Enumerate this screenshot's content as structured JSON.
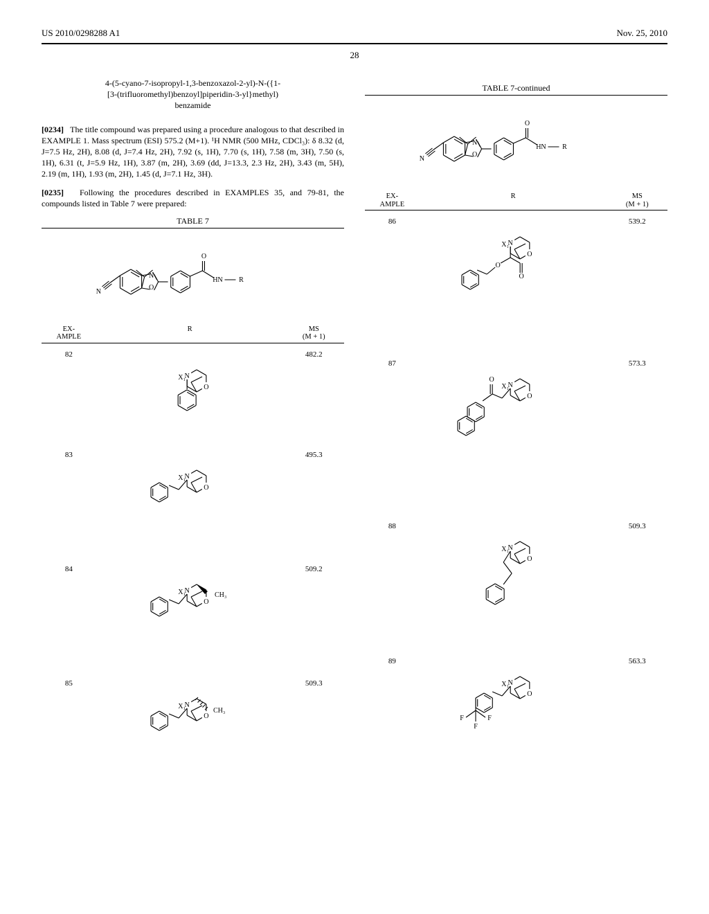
{
  "header": {
    "left": "US 2010/0298288 A1",
    "right": "Nov. 25, 2010",
    "page_number": "28"
  },
  "left_column": {
    "compound_title_lines": [
      "4-(5-cyano-7-isopropyl-1,3-benzoxazol-2-yl)-N-({1-",
      "[3-(trifluoromethyl)benzoyl]piperidin-3-yl}methyl)",
      "benzamide"
    ],
    "para_0234_num": "[0234]",
    "para_0234_text": "The title compound was prepared using a procedure analogous to that described in EXAMPLE 1. Mass spectrum (ESI) 575.2 (M+1). ¹H NMR (500 MHz, CDCl₃): δ 8.32 (d, J=7.5 Hz, 2H), 8.08 (d, J=7.4 Hz, 2H), 7.92 (s, 1H), 7.70 (s, 1H), 7.58 (m, 3H), 7.50 (s, 1H), 6.31 (t, J=5.9 Hz, 1H), 3.87 (m, 2H), 3.69 (dd, J=13.3, 2.3 Hz, 2H), 3.43 (m, 5H), 2.19 (m, 1H), 1.93 (m, 2H), 1.45 (d, J=7.1 Hz, 3H).",
    "para_0235_num": "[0235]",
    "para_0235_text": "Following the procedures described in EXAMPLES 35, and 79-81, the compounds listed in Table 7 were prepared:",
    "table_caption": "TABLE 7",
    "table_head": {
      "example": "EX-\nAMPLE",
      "r": "R",
      "ms": "MS\n(M + 1)"
    },
    "rows": [
      {
        "example": "82",
        "ms": "482.2",
        "variant": "phenyl_morph"
      },
      {
        "example": "83",
        "ms": "495.3",
        "variant": "benzyl_morph"
      },
      {
        "example": "84",
        "ms": "509.2",
        "variant": "benzyl_morph_me_wedge"
      },
      {
        "example": "85",
        "ms": "509.3",
        "variant": "benzyl_morph_me_hash"
      }
    ]
  },
  "right_column": {
    "table_caption": "TABLE 7-continued",
    "table_head": {
      "example": "EX-\nAMPLE",
      "r": "R",
      "ms": "MS\n(M + 1)"
    },
    "rows": [
      {
        "example": "86",
        "ms": "539.2",
        "variant": "cbz_morph"
      },
      {
        "example": "87",
        "ms": "573.3",
        "variant": "naphthyl_ac_morph"
      },
      {
        "example": "88",
        "ms": "509.3",
        "variant": "phenethyl_morph"
      },
      {
        "example": "89",
        "ms": "563.3",
        "variant": "cf3_benzyl_morph"
      }
    ]
  },
  "style": {
    "stroke": "#000000",
    "stroke_width": 1.1,
    "font_size_atom": 10,
    "scaffold_width": 290,
    "scaffold_height": 110,
    "r_width": 180
  },
  "r_heights": {
    "phenyl_morph": 130,
    "benzyl_morph": 150,
    "benzyl_morph_me_wedge": 150,
    "benzyl_morph_me_hash": 150,
    "cbz_morph": 190,
    "naphthyl_ac_morph": 220,
    "phenethyl_morph": 180,
    "cf3_benzyl_morph": 220
  }
}
